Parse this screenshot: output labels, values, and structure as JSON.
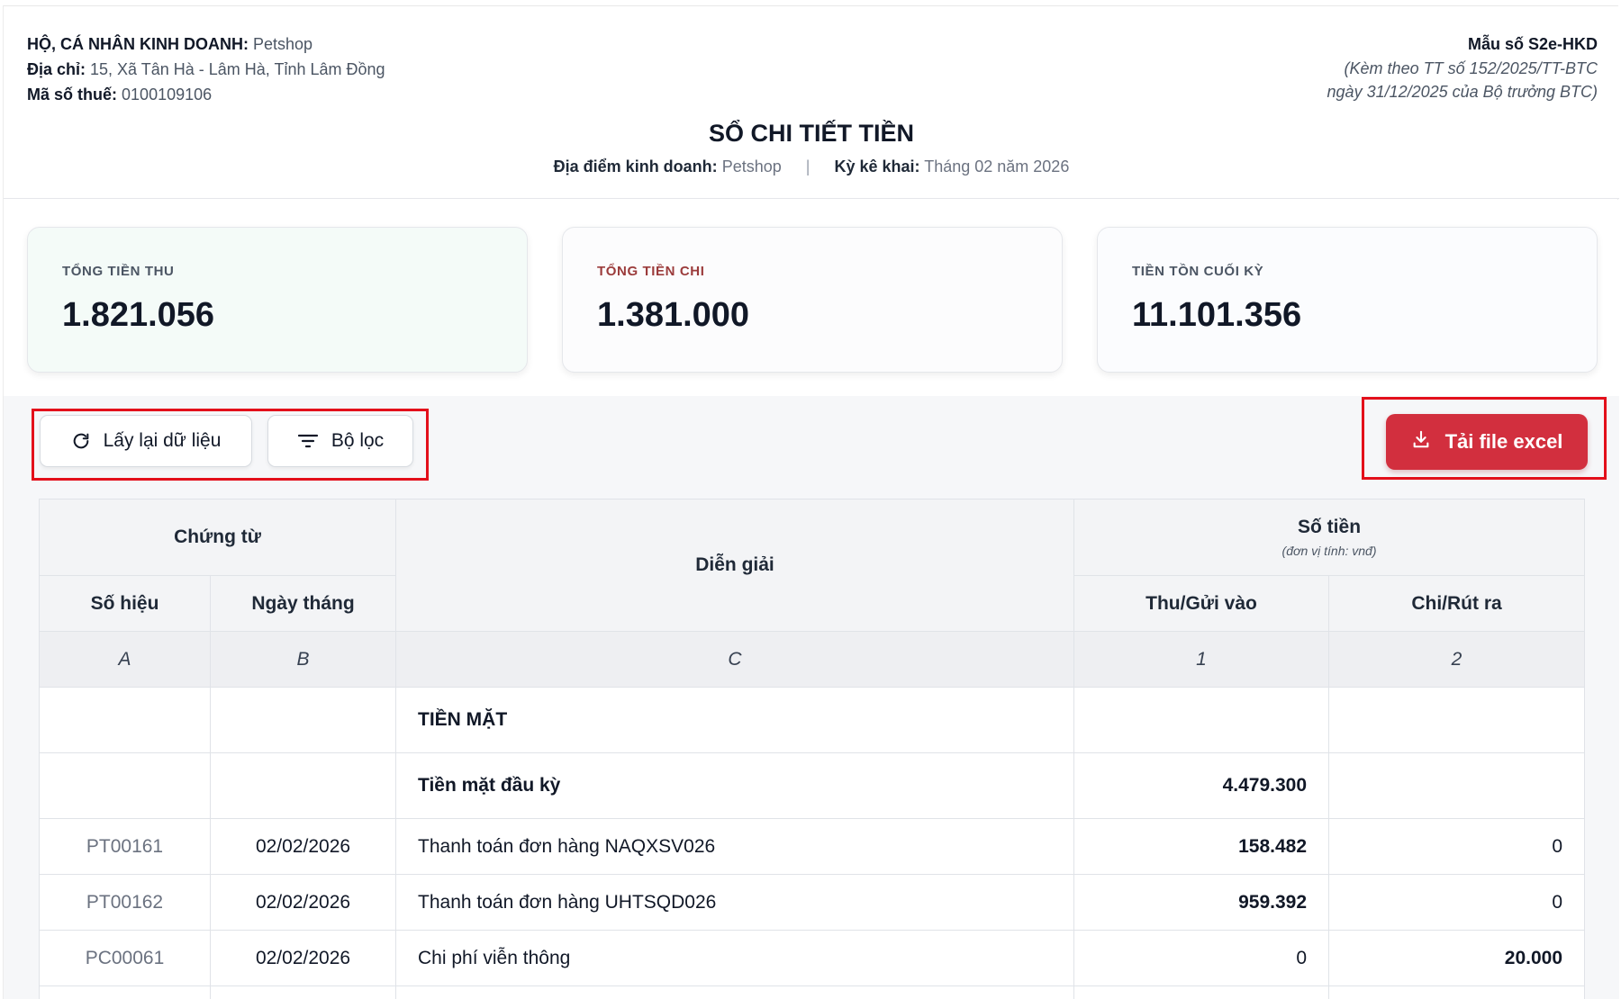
{
  "header": {
    "business_label": "HỘ, CÁ NHÂN KINH DOANH:",
    "business_value": "Petshop",
    "address_label": "Địa chỉ:",
    "address_value": "15, Xã Tân Hà - Lâm Hà, Tỉnh Lâm Đồng",
    "tax_label": "Mã số thuế:",
    "tax_value": "0100109106",
    "form_no": "Mẫu số S2e-HKD",
    "form_note_1": "(Kèm theo TT số 152/2025/TT-BTC",
    "form_note_2": "ngày 31/12/2025 của Bộ trưởng BTC)",
    "title": "SỔ CHI TIẾT TIỀN",
    "location_label": "Địa điểm kinh doanh:",
    "location_value": "Petshop",
    "separator": "|",
    "period_label": "Kỳ kê khai:",
    "period_value": "Tháng 02 năm 2026"
  },
  "cards": {
    "income_label": "TỔNG TIỀN THU",
    "income_value": "1.821.056",
    "expense_label": "TỔNG TIỀN CHI",
    "expense_value": "1.381.000",
    "balance_label": "TIỀN TỒN CUỐI KỲ",
    "balance_value": "11.101.356"
  },
  "toolbar": {
    "reload_label": "Lấy lại dữ liệu",
    "filter_label": "Bộ lọc",
    "excel_label": "Tải file excel",
    "reload_icon": "refresh-icon",
    "filter_icon": "filter-icon",
    "excel_icon": "download-icon",
    "highlight_color": "#e3101b",
    "excel_color": "#d22f3e"
  },
  "table": {
    "h_voucher": "Chứng từ",
    "h_description": "Diễn giải",
    "h_amount": "Số tiền",
    "h_amount_unit": "(đơn vị tính: vnđ)",
    "h_code": "Số hiệu",
    "h_date": "Ngày tháng",
    "h_in": "Thu/Gửi vào",
    "h_out": "Chi/Rút ra",
    "idx_a": "A",
    "idx_b": "B",
    "idx_c": "C",
    "idx_1": "1",
    "idx_2": "2",
    "section_title": "TIỀN MẶT",
    "opening_label": "Tiền mặt đầu kỳ",
    "opening_value": "4.479.300",
    "rows": [
      {
        "code": "PT00161",
        "date": "02/02/2026",
        "desc": "Thanh toán đơn hàng NAQXSV026",
        "in": "158.482",
        "out": "0"
      },
      {
        "code": "PT00162",
        "date": "02/02/2026",
        "desc": "Thanh toán đơn hàng UHTSQD026",
        "in": "959.392",
        "out": "0"
      },
      {
        "code": "PC00061",
        "date": "02/02/2026",
        "desc": "Chi phí viễn thông",
        "in": "0",
        "out": "20.000"
      }
    ]
  }
}
